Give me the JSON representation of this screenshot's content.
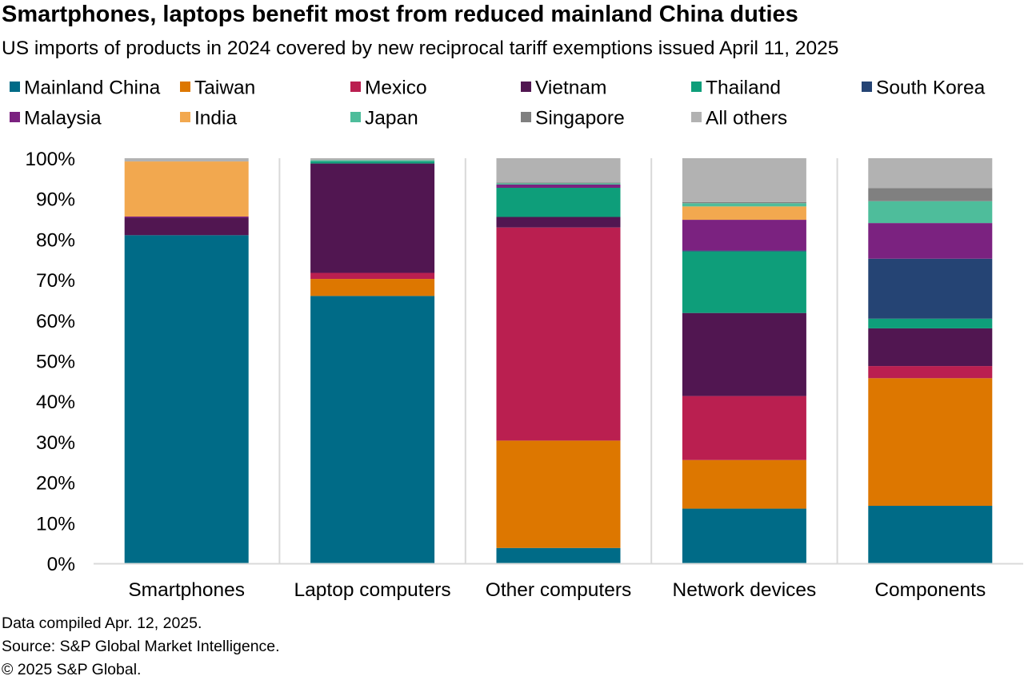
{
  "title": "Smartphones, laptops benefit most from reduced mainland China duties",
  "subtitle": "US imports of products in 2024 covered by new reciprocal tariff exemptions issued April 11, 2025",
  "footer": {
    "line1": "Data compiled Apr. 12, 2025.",
    "line2": "Source: S&P Global Market Intelligence.",
    "line3": "© 2025 S&P Global."
  },
  "chart_data": {
    "type": "bar",
    "stacked": true,
    "title": "Smartphones, laptops benefit most from reduced mainland China duties",
    "xlabel": "",
    "ylabel": "",
    "ylim": [
      0,
      100
    ],
    "yticks": [
      "0%",
      "10%",
      "20%",
      "30%",
      "40%",
      "50%",
      "60%",
      "70%",
      "80%",
      "90%",
      "100%"
    ],
    "grid": false,
    "legend_position": "top",
    "categories": [
      "Smartphones",
      "Laptop computers",
      "Other computers",
      "Network devices",
      "Components"
    ],
    "series": [
      {
        "name": "Mainland China",
        "color": "#006B87",
        "values": [
          81.0,
          66.0,
          3.8,
          13.5,
          14.2
        ]
      },
      {
        "name": "Taiwan",
        "color": "#DD7700",
        "values": [
          0.0,
          4.2,
          26.5,
          12.0,
          31.5
        ]
      },
      {
        "name": "Mexico",
        "color": "#BA1F50",
        "values": [
          0.0,
          1.5,
          52.6,
          15.8,
          3.0
        ]
      },
      {
        "name": "Vietnam",
        "color": "#511651",
        "values": [
          4.3,
          27.0,
          2.6,
          20.5,
          9.3
        ]
      },
      {
        "name": "Thailand",
        "color": "#0E9E7A",
        "values": [
          0.0,
          0.5,
          7.2,
          15.2,
          2.4
        ]
      },
      {
        "name": "South Korea",
        "color": "#254474",
        "values": [
          0.0,
          0.0,
          0.0,
          0.2,
          14.8
        ]
      },
      {
        "name": "Malaysia",
        "color": "#7B2280",
        "values": [
          0.3,
          0.0,
          0.8,
          7.6,
          8.8
        ]
      },
      {
        "name": "India",
        "color": "#F2A84F",
        "values": [
          13.6,
          0.0,
          0.0,
          3.3,
          0.0
        ]
      },
      {
        "name": "Japan",
        "color": "#4EBD9B",
        "values": [
          0.0,
          0.3,
          0.3,
          0.8,
          5.4
        ]
      },
      {
        "name": "Singapore",
        "color": "#808080",
        "values": [
          0.0,
          0.0,
          0.2,
          0.3,
          3.2
        ]
      },
      {
        "name": "All others",
        "color": "#B2B2B2",
        "values": [
          0.8,
          0.5,
          6.0,
          10.8,
          7.4
        ]
      }
    ]
  }
}
